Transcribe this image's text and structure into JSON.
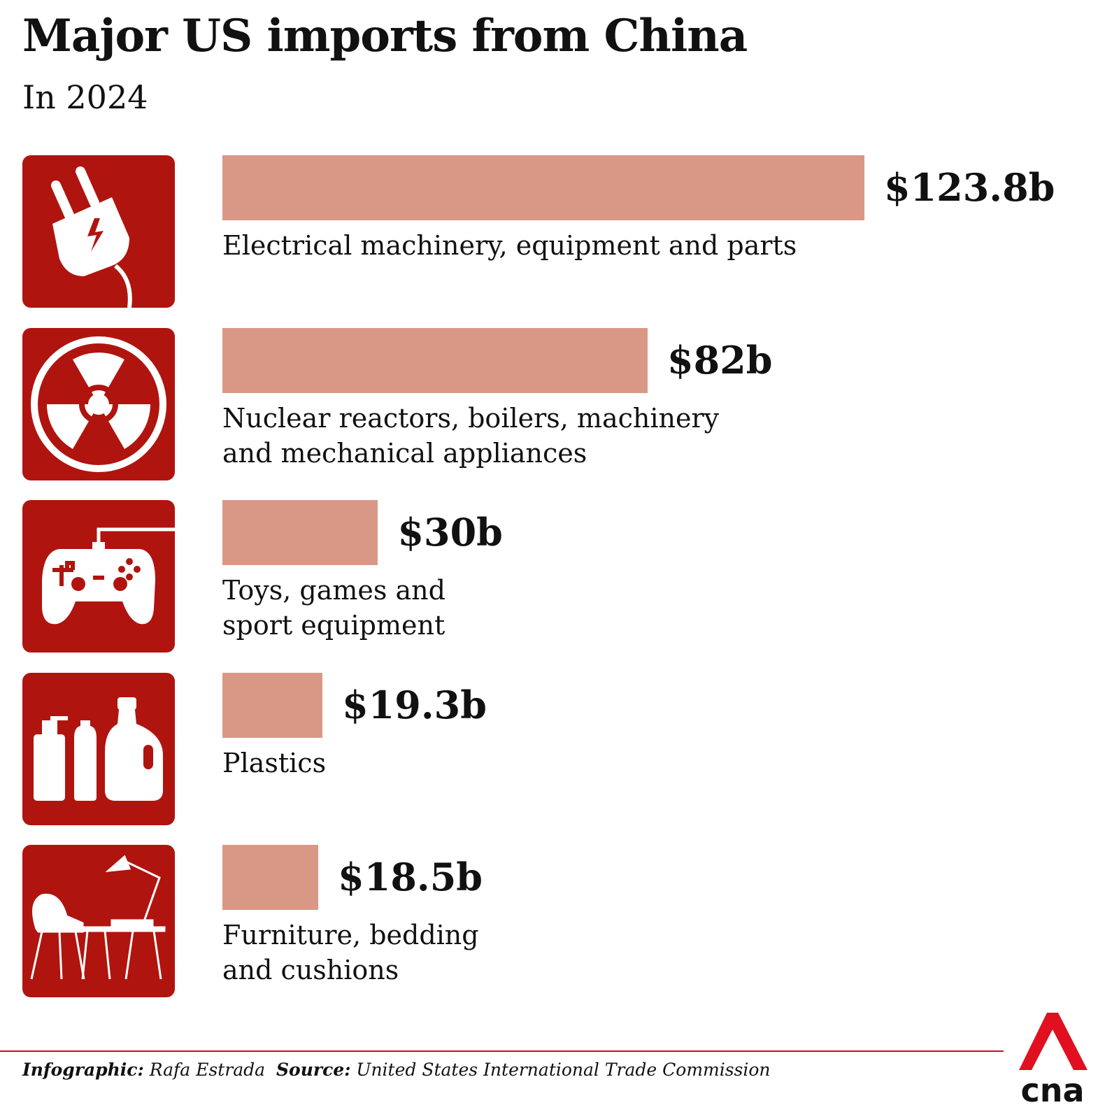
{
  "chart_data": {
    "type": "bar",
    "orientation": "horizontal",
    "title": "Major US imports from China",
    "subtitle": "In 2024",
    "categories": [
      "Electrical machinery, equipment and parts",
      "Nuclear reactors, boilers, machinery and mechanical appliances",
      "Toys, games and sport equipment",
      "Plastics",
      "Furniture, bedding and cushions"
    ],
    "values": [
      123.8,
      82,
      30,
      19.3,
      18.5
    ],
    "value_labels": [
      "$123.8b",
      "$82b",
      "$30b",
      "$19.3b",
      "$18.5b"
    ],
    "color": "#d99886",
    "icon_color": "#b0140f"
  },
  "footer": {
    "credit_label": "Infographic:",
    "credit": "Rafa Estrada",
    "source_label": "Source:",
    "source": "United States International Trade Commission",
    "logo": "cna"
  }
}
